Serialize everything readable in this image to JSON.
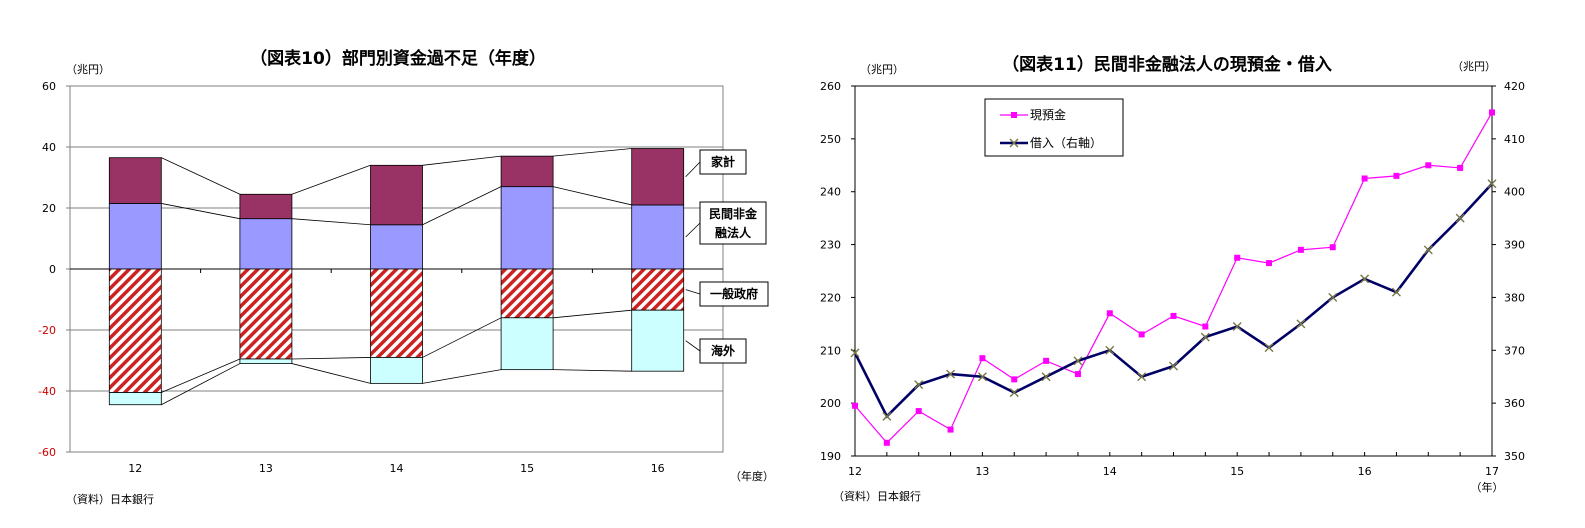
{
  "left": {
    "title": "（図表10）部門別資金過不足（年度）",
    "unit": "（兆円）",
    "xunit": "（年度）",
    "source": "（資料）日本銀行",
    "chart_data": {
      "type": "bar",
      "stacked": true,
      "categories": [
        "12",
        "13",
        "14",
        "15",
        "16"
      ],
      "ylim": [
        -60,
        60
      ],
      "yticks": [
        60,
        40,
        20,
        0,
        -20,
        -40,
        -60
      ],
      "grid": true,
      "series": [
        {
          "name": "民間非金融法人",
          "values": [
            21.5,
            16.5,
            14.5,
            27.0,
            21.0
          ],
          "color": "#9999ff"
        },
        {
          "name": "家計",
          "values": [
            15.0,
            8.0,
            19.5,
            10.0,
            18.5
          ],
          "color": "#993366"
        },
        {
          "name": "一般政府",
          "values": [
            -40.5,
            -29.5,
            -29.0,
            -16.0,
            -13.5
          ],
          "color": "#cc2222"
        },
        {
          "name": "海外",
          "values": [
            -4.0,
            -1.5,
            -8.5,
            -17.0,
            -20.0
          ],
          "color": "#ccffff"
        }
      ],
      "legend_labels": [
        {
          "series": "家計",
          "lines": [
            "家計"
          ]
        },
        {
          "series": "民間非金融法人",
          "lines": [
            "民間非金",
            "融法人"
          ]
        },
        {
          "series": "一般政府",
          "lines": [
            "一般政府"
          ]
        },
        {
          "series": "海外",
          "lines": [
            "海外"
          ]
        }
      ]
    }
  },
  "right": {
    "title": "（図表11）民間非金融法人の現預金・借入",
    "unit_left": "（兆円）",
    "unit_right": "（兆円）",
    "xunit": "（年）",
    "source": "（資料）日本銀行",
    "chart_data": {
      "type": "line",
      "x": [
        12.0,
        12.25,
        12.5,
        12.75,
        13.0,
        13.25,
        13.5,
        13.75,
        14.0,
        14.25,
        14.5,
        14.75,
        15.0,
        15.25,
        15.5,
        15.75,
        16.0,
        16.25,
        16.5,
        16.75,
        17.0
      ],
      "xticks": [
        "12",
        "13",
        "14",
        "15",
        "16",
        "17"
      ],
      "xlim": [
        12,
        17
      ],
      "ylim_left": [
        190,
        260
      ],
      "ylim_right": [
        350,
        420
      ],
      "yticks_left": [
        190,
        200,
        210,
        220,
        230,
        240,
        250,
        260
      ],
      "yticks_right": [
        350,
        360,
        370,
        380,
        390,
        400,
        410,
        420
      ],
      "legend": "top-left",
      "series": [
        {
          "name": "現預金",
          "axis": "left",
          "color": "#ff00ff",
          "marker": "square",
          "values": [
            199.5,
            192.5,
            198.5,
            195.0,
            208.5,
            204.5,
            208.0,
            205.5,
            217.0,
            213.0,
            216.5,
            214.5,
            227.5,
            226.5,
            229.0,
            229.5,
            242.5,
            243.0,
            245.0,
            244.5,
            255.0
          ]
        },
        {
          "name": "借入（右軸）",
          "axis": "right",
          "color": "#000066",
          "marker": "x",
          "values": [
            369.5,
            357.5,
            363.5,
            365.5,
            365.0,
            362.0,
            365.0,
            368.0,
            370.0,
            365.0,
            367.0,
            372.5,
            374.5,
            370.5,
            375.0,
            380.0,
            383.5,
            381.0,
            389.0,
            395.0,
            401.5
          ]
        }
      ]
    }
  }
}
